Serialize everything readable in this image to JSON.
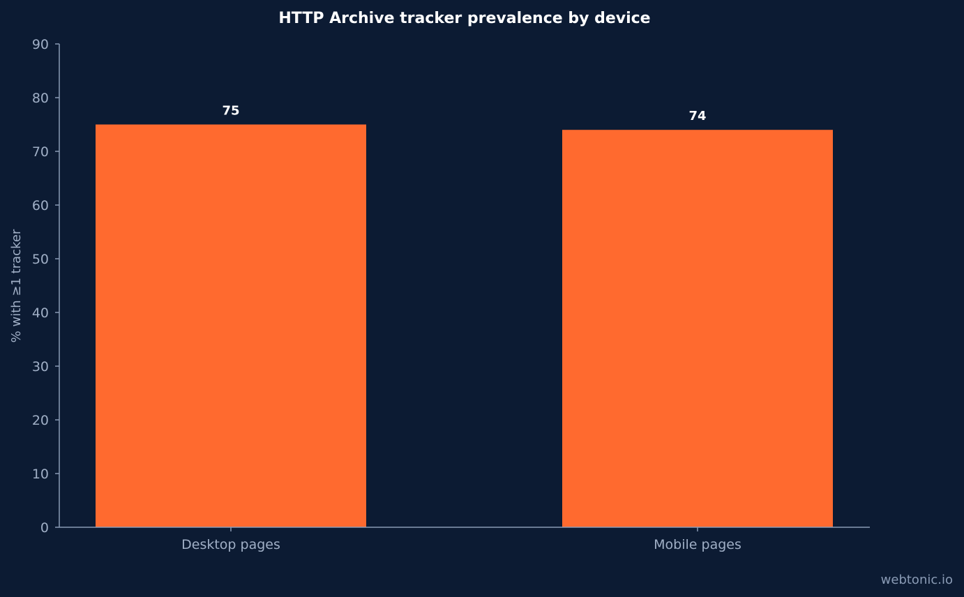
{
  "chart_data": {
    "type": "bar",
    "title": "HTTP Archive tracker prevalence by device",
    "xlabel": "",
    "ylabel": "% with ≥1 tracker",
    "categories": [
      "Desktop pages",
      "Mobile pages"
    ],
    "values": [
      75,
      74
    ],
    "value_labels": [
      "75",
      "74"
    ],
    "ylim": [
      0,
      90
    ],
    "yticks": [
      0,
      10,
      20,
      30,
      40,
      50,
      60,
      70,
      80,
      90
    ],
    "grid": false,
    "legend": "none"
  },
  "footer": {
    "credit": "webtonic.io"
  },
  "colors": {
    "background": "#0c1b33",
    "bar": "#ff6a2f",
    "axis": "#8a9bb5",
    "tick_text": "#a0afc6",
    "title_text": "#ffffff",
    "value_text": "#ffffff",
    "watermark_text": "#8a9bb5"
  }
}
